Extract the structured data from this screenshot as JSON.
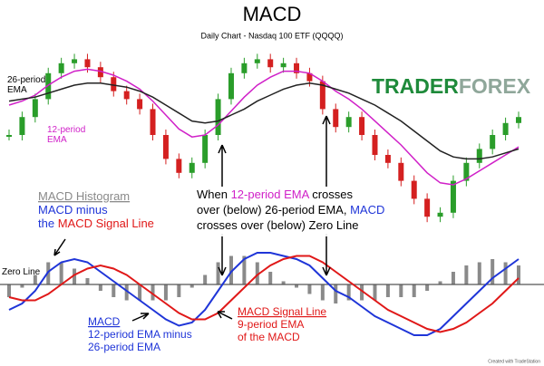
{
  "chart_data": {
    "type": "candlestick",
    "title": "MACD",
    "subtitle": "Daily Chart - Nasdaq 100 ETF (QQQQ)",
    "logo": [
      "TRADER",
      "FOREX"
    ],
    "credit": "Created with TradeStation",
    "ylim": [
      0,
      100
    ],
    "y2lim": [
      -12,
      6
    ],
    "up_color": "#2a9d2a",
    "down_color": "#d42020",
    "zero_line": true,
    "close": [
      55,
      64,
      73,
      86,
      91,
      93,
      89,
      84,
      77,
      73,
      68,
      55,
      43,
      36,
      41,
      55,
      73,
      86,
      91,
      93,
      89,
      91,
      86,
      82,
      68,
      59,
      64,
      55,
      45,
      41,
      32,
      23,
      14,
      16,
      32,
      41,
      48,
      55,
      61,
      64
    ],
    "series": [
      {
        "name": "12-period EMA",
        "color": "#d020c8",
        "values": [
          70,
          72,
          75,
          80,
          84,
          87,
          88,
          87,
          85,
          82,
          78,
          72,
          65,
          58,
          54,
          55,
          60,
          67,
          74,
          80,
          84,
          87,
          87,
          86,
          82,
          77,
          73,
          68,
          62,
          56,
          50,
          43,
          36,
          31,
          30,
          33,
          37,
          41,
          45,
          49
        ]
      },
      {
        "name": "26-period EMA",
        "color": "#222222",
        "values": [
          72,
          73,
          74,
          76,
          78,
          80,
          81,
          81,
          80,
          79,
          77,
          74,
          70,
          66,
          62,
          61,
          62,
          65,
          68,
          72,
          75,
          78,
          80,
          81,
          80,
          78,
          76,
          73,
          70,
          66,
          62,
          57,
          52,
          47,
          44,
          43,
          43,
          44,
          46,
          48
        ]
      },
      {
        "name": "MACD Histogram",
        "color": "#8a8a8a",
        "axis": "y2",
        "values": [
          -2,
          -0.5,
          1.5,
          3.5,
          3.5,
          2.5,
          1,
          -1,
          -2,
          -2.5,
          -2.5,
          -2.5,
          -2.5,
          -2,
          -0.5,
          1.5,
          3.5,
          4.5,
          4.5,
          3.5,
          2,
          0.5,
          -0.5,
          -1.5,
          -2.5,
          -3,
          -2.5,
          -2.5,
          -2.5,
          -2,
          -2,
          -2,
          -1,
          0.5,
          2,
          3,
          3.5,
          4,
          3.5,
          3
        ]
      },
      {
        "name": "MACD",
        "color": "#1f35d8",
        "axis": "y2",
        "values": [
          -4,
          -3,
          -1,
          2,
          3.5,
          4,
          3.5,
          2,
          0.5,
          -1,
          -2.5,
          -4,
          -5.5,
          -6.5,
          -6,
          -4,
          -1,
          2,
          4,
          5,
          5,
          4.5,
          4,
          3,
          1,
          -1,
          -2,
          -3.5,
          -5,
          -6,
          -7,
          -8,
          -8,
          -7,
          -5,
          -3,
          -1,
          1,
          2.5,
          4
        ]
      },
      {
        "name": "MACD Signal Line",
        "color": "#e01818",
        "axis": "y2",
        "values": [
          -2,
          -2.5,
          -2.5,
          -1.5,
          0,
          1.5,
          2.5,
          3,
          2.5,
          1.5,
          0,
          -1.5,
          -3,
          -4.5,
          -5.5,
          -5.5,
          -4.5,
          -2.5,
          -0.5,
          1.5,
          3,
          4,
          4.5,
          4.5,
          3.5,
          2,
          0.5,
          -1,
          -2.5,
          -4,
          -5,
          -6,
          -7,
          -7.5,
          -7,
          -6,
          -4.5,
          -3,
          -1,
          1
        ]
      }
    ],
    "annotations": [
      {
        "lines": [
          [
            {
              "text": "26-period",
              "color": "#000000"
            }
          ],
          [
            {
              "text": "EMA",
              "color": "#000000"
            }
          ]
        ]
      },
      {
        "lines": [
          [
            {
              "text": "12-period",
              "color": "#d020c8"
            }
          ],
          [
            {
              "text": "EMA",
              "color": "#d020c8"
            }
          ]
        ]
      },
      {
        "lines": [
          [
            {
              "text": "MACD Histogram",
              "color": "#8a8a8a",
              "underline": true
            }
          ],
          [
            {
              "text": "MACD",
              "color": "#1f35d8"
            },
            {
              "text": " minus",
              "color": "#1f35d8"
            }
          ],
          [
            {
              "text": "the ",
              "color": "#1f35d8"
            },
            {
              "text": "MACD Signal Line",
              "color": "#e01818"
            }
          ]
        ]
      },
      {
        "lines": [
          [
            {
              "text": "When ",
              "color": "#000000"
            },
            {
              "text": "12-period EMA",
              "color": "#d020c8"
            },
            {
              "text": " crosses",
              "color": "#000000"
            }
          ],
          [
            {
              "text": "over (below) 26-period EMA, ",
              "color": "#000000"
            },
            {
              "text": "MACD",
              "color": "#1f35d8"
            }
          ],
          [
            {
              "text": "crosses over (below) Zero Line",
              "color": "#000000"
            }
          ]
        ]
      },
      {
        "lines": [
          [
            {
              "text": "Zero Line",
              "color": "#000000"
            }
          ]
        ]
      },
      {
        "lines": [
          [
            {
              "text": "MACD Signal Line",
              "color": "#e01818",
              "underline": true
            }
          ],
          [
            {
              "text": "9-period EMA",
              "color": "#e01818"
            }
          ],
          [
            {
              "text": "of the MACD",
              "color": "#e01818"
            }
          ]
        ]
      },
      {
        "lines": [
          [
            {
              "text": "MACD",
              "color": "#1f35d8",
              "underline": true
            }
          ],
          [
            {
              "text": "12-period EMA minus",
              "color": "#1f35d8"
            }
          ],
          [
            {
              "text": "26-period EMA",
              "color": "#1f35d8"
            }
          ]
        ]
      }
    ]
  }
}
